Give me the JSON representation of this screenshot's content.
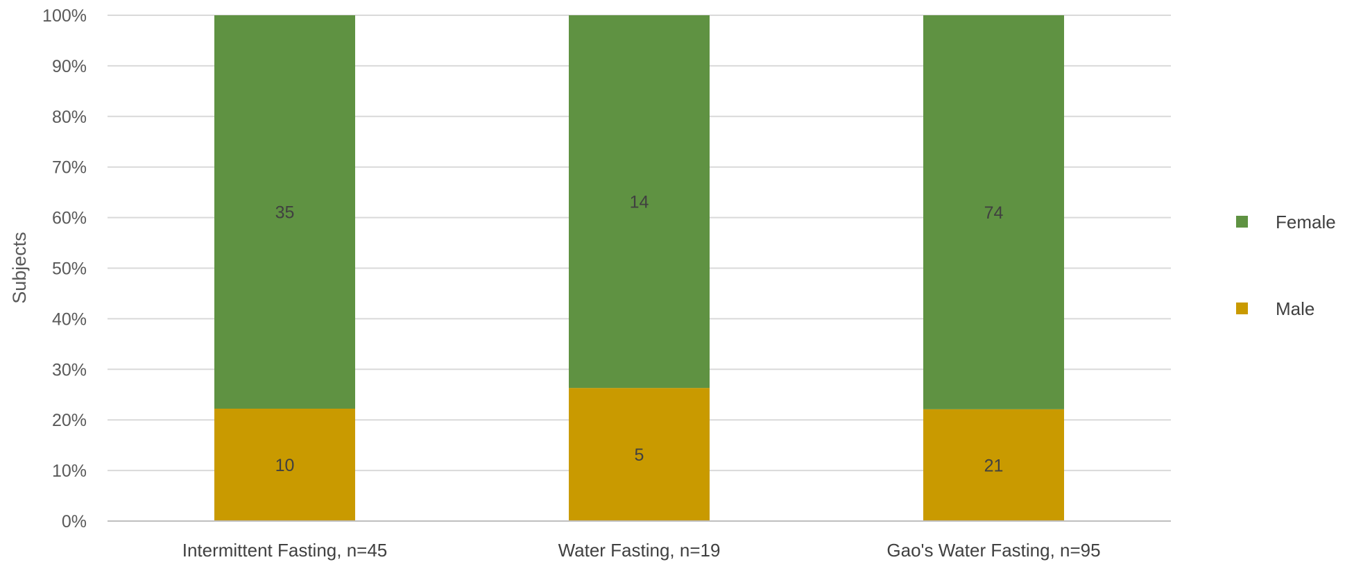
{
  "chart_data": {
    "type": "bar",
    "stacked": true,
    "normalized_percent": true,
    "categories": [
      "Intermittent Fasting, n=45",
      "Water Fasting, n=19",
      "Gao's Water Fasting, n=95"
    ],
    "series": [
      {
        "name": "Male",
        "values": [
          10,
          5,
          21
        ],
        "color": "#C99A00"
      },
      {
        "name": "Female",
        "values": [
          35,
          14,
          74
        ],
        "color": "#5F9242"
      }
    ],
    "ylabel": "Subjects",
    "xlabel": "",
    "title": "",
    "ylim": [
      0,
      100
    ],
    "yticks": [
      "0%",
      "10%",
      "20%",
      "30%",
      "40%",
      "50%",
      "60%",
      "70%",
      "80%",
      "90%",
      "100%"
    ],
    "grid": true,
    "legend_position": "right",
    "legend_order": [
      "Female",
      "Male"
    ]
  }
}
